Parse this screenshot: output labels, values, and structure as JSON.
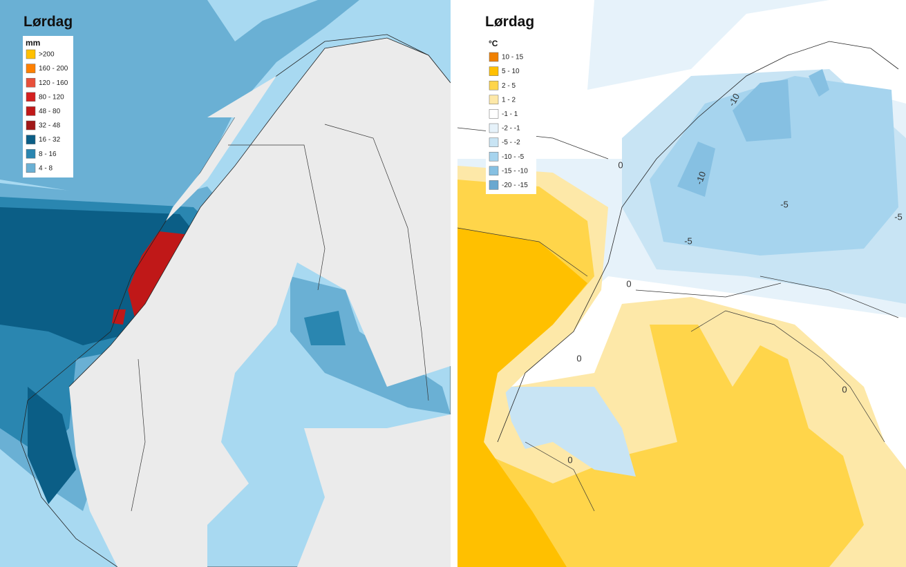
{
  "panels": [
    {
      "title": "Lørdag",
      "legend": {
        "title": "mm",
        "items": [
          {
            "label": ">200",
            "color": "#ffc000"
          },
          {
            "label": "160 - 200",
            "color": "#ff8000"
          },
          {
            "label": "120 - 160",
            "color": "#e8503a"
          },
          {
            "label": "80 - 120",
            "color": "#d42020"
          },
          {
            "label": "48 - 80",
            "color": "#c01818"
          },
          {
            "label": "32 - 48",
            "color": "#a01818"
          },
          {
            "label": "16 - 32",
            "color": "#0b5e86"
          },
          {
            "label": "8 - 16",
            "color": "#2a86b0"
          },
          {
            "label": "4 - 8",
            "color": "#6ab0d4"
          }
        ]
      }
    },
    {
      "title": "Lørdag",
      "legend": {
        "title": "°C",
        "items": [
          {
            "label": "10 - 15",
            "color": "#f08000"
          },
          {
            "label": "5 - 10",
            "color": "#ffc000"
          },
          {
            "label": "2 - 5",
            "color": "#ffd54a"
          },
          {
            "label": "1 - 2",
            "color": "#fde8a8"
          },
          {
            "label": "-1 - 1",
            "color": "#ffffff"
          },
          {
            "label": "-2 - -1",
            "color": "#e6f2fa"
          },
          {
            "label": "-5 - -2",
            "color": "#c8e4f4"
          },
          {
            "label": "-10 - -5",
            "color": "#a6d4ee"
          },
          {
            "label": "-15 - -10",
            "color": "#86c0e2"
          },
          {
            "label": "-20 - -15",
            "color": "#6aa8d0"
          }
        ]
      },
      "contour_labels": [
        "-10",
        "-10",
        "-5",
        "-5",
        "-5",
        "0",
        "0",
        "0",
        "0",
        "0"
      ]
    }
  ]
}
